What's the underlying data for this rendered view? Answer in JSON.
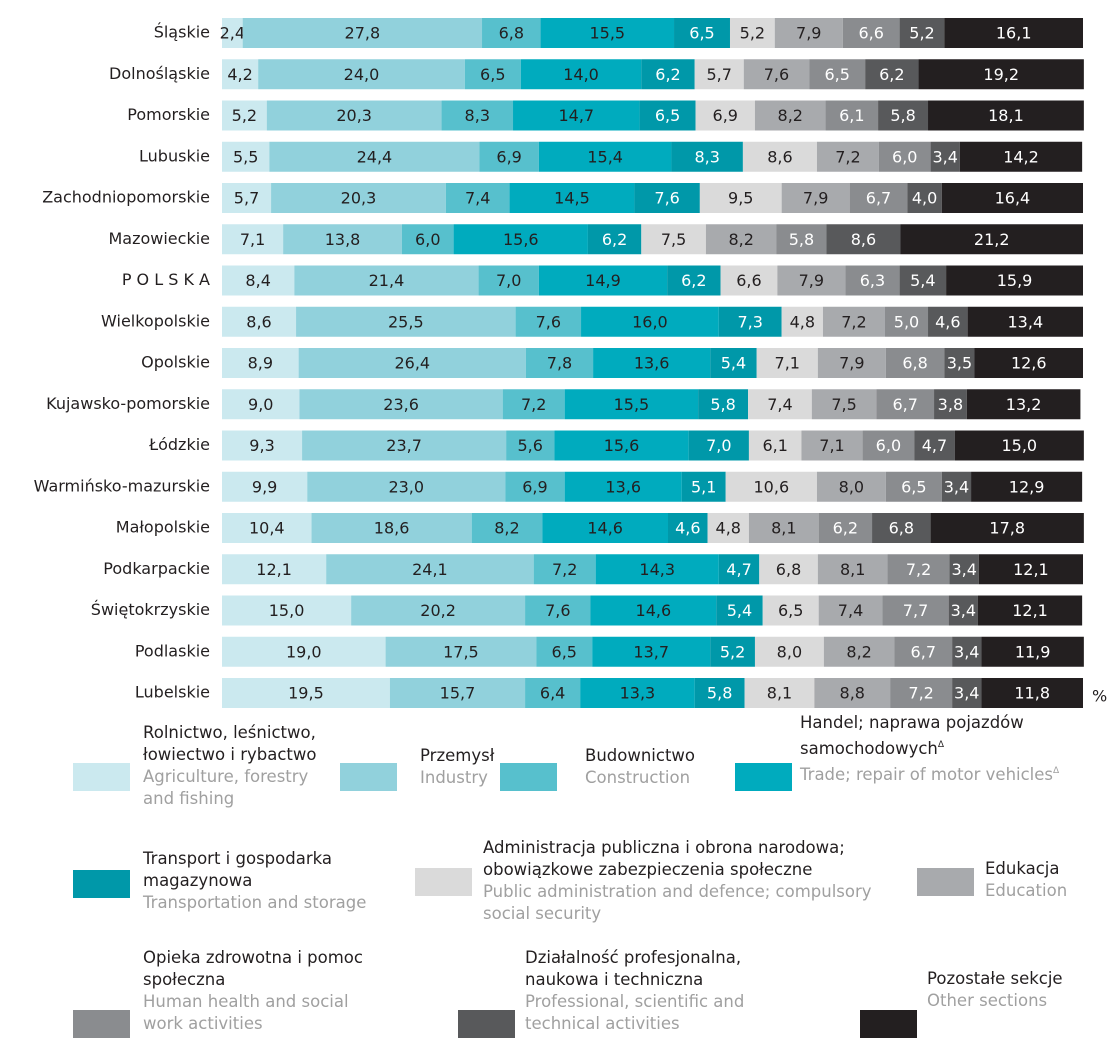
{
  "chart_data": {
    "type": "stacked_bar_horizontal",
    "unit": "%",
    "xlim": [
      0,
      100
    ],
    "categories": [
      "Śląskie",
      "Dolnośląskie",
      "Pomorskie",
      "Lubuskie",
      "Zachodniopomorskie",
      "Mazowieckie",
      "P O L S K A",
      "Wielkopolskie",
      "Opolskie",
      "Kujawsko-pomorskie",
      "Łódzkie",
      "Warmińsko-mazurskie",
      "Małopolskie",
      "Podkarpackie",
      "Świętokrzyskie",
      "Podlaskie",
      "Lubelskie"
    ],
    "series": [
      {
        "name": "Rolnictwo, leśnictwo, łowiectwo i rybactwo",
        "name_en": "Agriculture, forestry and fishing",
        "color": "#cbe9ef",
        "label_color": "#231f20",
        "values": [
          2.4,
          4.2,
          5.2,
          5.5,
          5.7,
          7.1,
          8.4,
          8.6,
          8.9,
          9.0,
          9.3,
          9.9,
          10.4,
          12.1,
          15.0,
          19.0,
          19.5
        ],
        "value_labels": [
          "2,4",
          "4,2",
          "5,2",
          "5,5",
          "5,7",
          "7,1",
          "8,4",
          "8,6",
          "8,9",
          "9,0",
          "9,3",
          "9,9",
          "10,4",
          "12,1",
          "15,0",
          "19,0",
          "19,5"
        ]
      },
      {
        "name": "Przemysł",
        "name_en": "Industry",
        "color": "#91d1dc",
        "label_color": "#231f20",
        "values": [
          27.8,
          24.0,
          20.3,
          24.4,
          20.3,
          13.8,
          21.4,
          25.5,
          26.4,
          23.6,
          23.7,
          23.0,
          18.6,
          24.1,
          20.2,
          17.5,
          15.7
        ],
        "value_labels": [
          "27,8",
          "24,0",
          "20,3",
          "24,4",
          "20,3",
          "13,8",
          "21,4",
          "25,5",
          "26,4",
          "23,6",
          "23,7",
          "23,0",
          "18,6",
          "24,1",
          "20,2",
          "17,5",
          "15,7"
        ]
      },
      {
        "name": "Budownictwo",
        "name_en": "Construction",
        "color": "#57c0cd",
        "label_color": "#231f20",
        "values": [
          6.8,
          6.5,
          8.3,
          6.9,
          7.4,
          6.0,
          7.0,
          7.6,
          7.8,
          7.2,
          5.6,
          6.9,
          8.2,
          7.2,
          7.6,
          6.5,
          6.4
        ],
        "value_labels": [
          "6,8",
          "6,5",
          "8,3",
          "6,9",
          "7,4",
          "6,0",
          "7,0",
          "7,6",
          "7,8",
          "7,2",
          "5,6",
          "6,9",
          "8,2",
          "7,2",
          "7,6",
          "6,5",
          "6,4"
        ]
      },
      {
        "name": "Handel; naprawa pojazdów samochodowych",
        "name_mark": "Δ",
        "name_en": "Trade; repair of motor vehicles",
        "name_en_mark": "Δ",
        "color": "#00abbe",
        "label_color": "#231f20",
        "values": [
          15.5,
          14.0,
          14.7,
          15.4,
          14.5,
          15.6,
          14.9,
          16.0,
          13.6,
          15.5,
          15.6,
          13.6,
          14.6,
          14.3,
          14.6,
          13.7,
          13.3
        ],
        "value_labels": [
          "15,5",
          "14,0",
          "14,7",
          "15,4",
          "14,5",
          "15,6",
          "14,9",
          "16,0",
          "13,6",
          "15,5",
          "15,6",
          "13,6",
          "14,6",
          "14,3",
          "14,6",
          "13,7",
          "13,3"
        ]
      },
      {
        "name": "Transport i gospodarka magazynowa",
        "name_en": "Transportation and storage",
        "color": "#0098a9",
        "label_color": "#ffffff",
        "values": [
          6.5,
          6.2,
          6.5,
          8.3,
          7.6,
          6.2,
          6.2,
          7.3,
          5.4,
          5.8,
          7.0,
          5.1,
          4.6,
          4.7,
          5.4,
          5.2,
          5.8
        ],
        "value_labels": [
          "6,5",
          "6,2",
          "6,5",
          "8,3",
          "7,6",
          "6,2",
          "6,2",
          "7,3",
          "5,4",
          "5,8",
          "7,0",
          "5,1",
          "4,6",
          "4,7",
          "5,4",
          "5,2",
          "5,8"
        ]
      },
      {
        "name": "Administracja publiczna i obrona narodowa; obowiązkowe zabezpieczenia społeczne",
        "name_en": "Public administration and defence; compulsory social security",
        "color": "#dadada",
        "label_color": "#231f20",
        "values": [
          5.2,
          5.7,
          6.9,
          8.6,
          9.5,
          7.5,
          6.6,
          4.8,
          7.1,
          7.4,
          6.1,
          10.6,
          4.8,
          6.8,
          6.5,
          8.0,
          8.1
        ],
        "value_labels": [
          "5,2",
          "5,7",
          "6,9",
          "8,6",
          "9,5",
          "7,5",
          "6,6",
          "4,8",
          "7,1",
          "7,4",
          "6,1",
          "10,6",
          "4,8",
          "6,8",
          "6,5",
          "8,0",
          "8,1"
        ]
      },
      {
        "name": "Edukacja",
        "name_en": "Education",
        "color": "#a8aaad",
        "label_color": "#231f20",
        "values": [
          7.9,
          7.6,
          8.2,
          7.2,
          7.9,
          8.2,
          7.9,
          7.2,
          7.9,
          7.5,
          7.1,
          8.0,
          8.1,
          8.1,
          7.4,
          8.2,
          8.8
        ],
        "value_labels": [
          "7,9",
          "7,6",
          "8,2",
          "7,2",
          "7,9",
          "8,2",
          "7,9",
          "7,2",
          "7,9",
          "7,5",
          "7,1",
          "8,0",
          "8,1",
          "8,1",
          "7,4",
          "8,2",
          "8,8"
        ]
      },
      {
        "name": "Opieka zdrowotna i pomoc społeczna",
        "name_en": "Human health and social work activities",
        "color": "#8a8c8f",
        "label_color": "#ffffff",
        "values": [
          6.6,
          6.5,
          6.1,
          6.0,
          6.7,
          5.8,
          6.3,
          5.0,
          6.8,
          6.7,
          6.0,
          6.5,
          6.2,
          7.2,
          7.7,
          6.7,
          7.2
        ],
        "value_labels": [
          "6,6",
          "6,5",
          "6,1",
          "6,0",
          "6,7",
          "5,8",
          "6,3",
          "5,0",
          "6,8",
          "6,7",
          "6,0",
          "6,5",
          "6,2",
          "7,2",
          "7,7",
          "6,7",
          "7,2"
        ]
      },
      {
        "name": "Działalność profesjonalna, naukowa i techniczna",
        "name_en": "Professional, scientific and technical activities",
        "color": "#58595b",
        "label_color": "#ffffff",
        "values": [
          5.2,
          6.2,
          5.8,
          3.4,
          4.0,
          8.6,
          5.4,
          4.6,
          3.5,
          3.8,
          4.7,
          3.4,
          6.8,
          3.4,
          3.4,
          3.4,
          3.4
        ],
        "value_labels": [
          "5,2",
          "6,2",
          "5,8",
          "3,4",
          "4,0",
          "8,6",
          "5,4",
          "4,6",
          "3,5",
          "3,8",
          "4,7",
          "3,4",
          "6,8",
          "3,4",
          "3,4",
          "3,4",
          "3,4"
        ]
      },
      {
        "name": "Pozostałe sekcje",
        "name_en": "Other sections",
        "color": "#231f20",
        "label_color": "#ffffff",
        "values": [
          16.1,
          19.2,
          18.1,
          14.2,
          16.4,
          21.2,
          15.9,
          13.4,
          12.6,
          13.2,
          15.0,
          12.9,
          17.8,
          12.1,
          12.1,
          11.9,
          11.8
        ],
        "value_labels": [
          "16,1",
          "19,2",
          "18,1",
          "14,2",
          "16,4",
          "21,2",
          "15,9",
          "13,4",
          "12,6",
          "13,2",
          "15,0",
          "12,9",
          "17,8",
          "12,1",
          "12,1",
          "11,9",
          "11,8"
        ]
      }
    ]
  }
}
